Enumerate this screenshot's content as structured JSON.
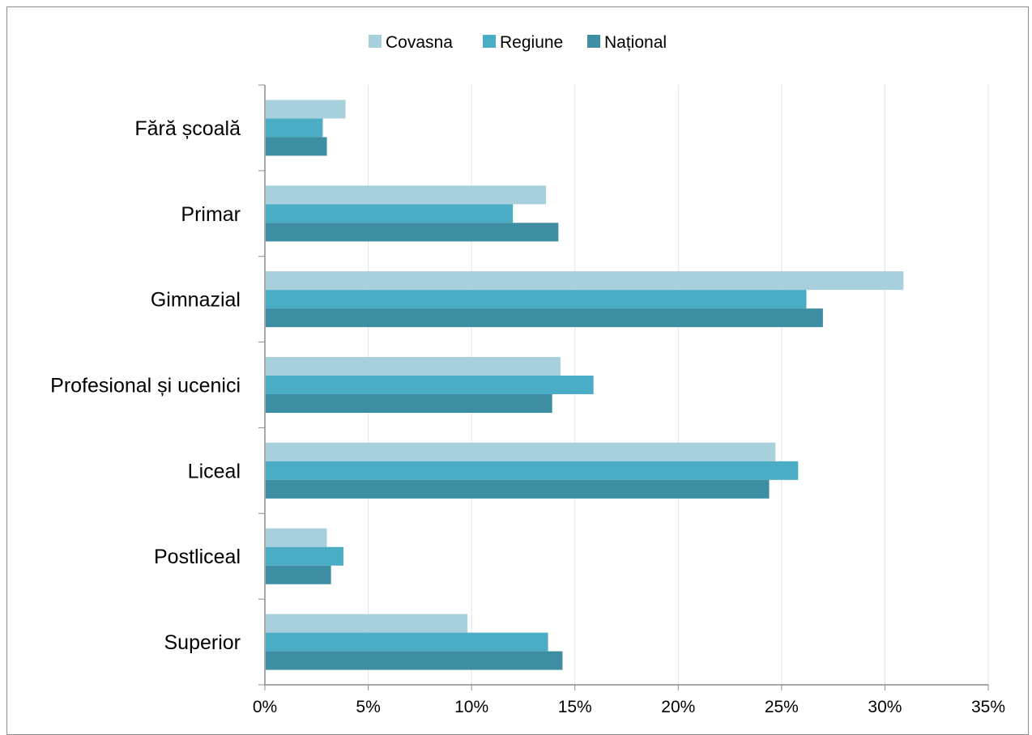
{
  "chart_data": {
    "type": "bar",
    "orientation": "horizontal",
    "categories": [
      "Fără școală",
      "Primar",
      "Gimnazial",
      "Profesional și ucenici",
      "Liceal",
      "Postliceal",
      "Superior"
    ],
    "series": [
      {
        "name": "Covasna",
        "color": "#a8cfdc",
        "values": [
          3.9,
          13.6,
          30.9,
          14.3,
          24.7,
          3.0,
          9.8
        ]
      },
      {
        "name": "Regiune",
        "color": "#4bacc6",
        "values": [
          2.8,
          12.0,
          26.2,
          15.9,
          25.8,
          3.8,
          13.7
        ]
      },
      {
        "name": "Național",
        "color": "#3e8ea3",
        "values": [
          3.0,
          14.2,
          27.0,
          13.9,
          24.4,
          3.2,
          14.4
        ]
      }
    ],
    "xlim": [
      0,
      35
    ],
    "xticks": [
      "0%",
      "5%",
      "10%",
      "15%",
      "20%",
      "25%",
      "30%",
      "35%"
    ],
    "grid": true,
    "legend_position": "top-center"
  }
}
